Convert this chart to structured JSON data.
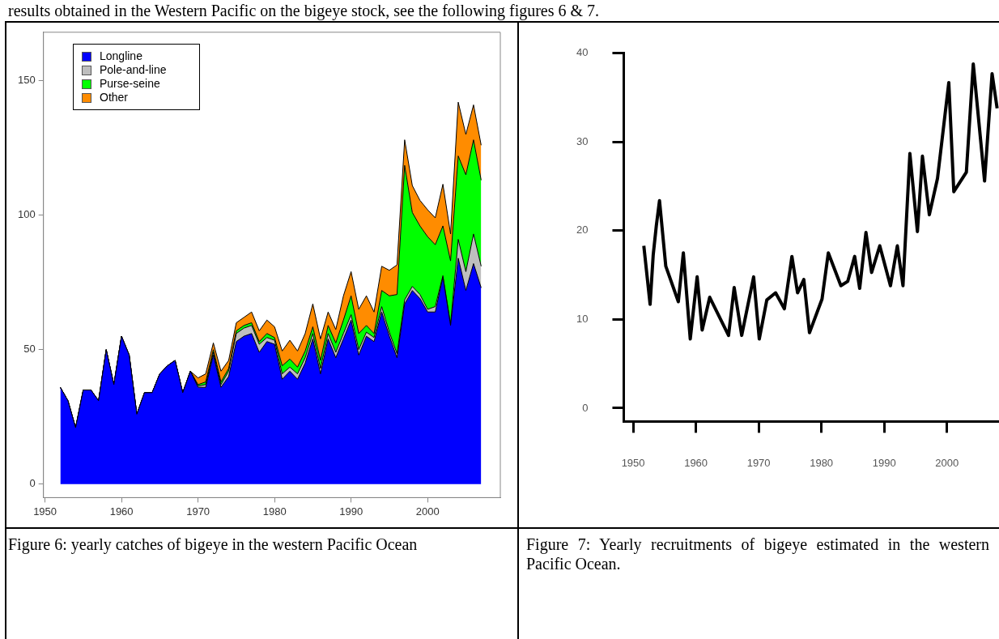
{
  "chart_data": [
    {
      "type": "area",
      "stacked": true,
      "marker": "none",
      "legend": "top left",
      "grid": false,
      "annotations": [
        "results obtained in the Western Pacific on the bigeye stock, see the following figures 6 & 7.",
        "Figure 6: yearly catches of bigeye in the western Pacific Ocean"
      ],
      "x": [
        1952,
        1953,
        1954,
        1955,
        1956,
        1957,
        1958,
        1959,
        1960,
        1961,
        1962,
        1963,
        1964,
        1965,
        1966,
        1967,
        1968,
        1969,
        1970,
        1971,
        1972,
        1973,
        1974,
        1975,
        1976,
        1977,
        1978,
        1979,
        1980,
        1981,
        1982,
        1983,
        1984,
        1985,
        1986,
        1987,
        1988,
        1989,
        1990,
        1991,
        1992,
        1993,
        1994,
        1995,
        1996,
        1997,
        1998,
        1999,
        2000,
        2001,
        2002,
        2003,
        2004,
        2005,
        2006,
        2007
      ],
      "xlim": [
        1949.8,
        2009.5
      ],
      "xticks": [
        1950,
        1960,
        1970,
        1980,
        1990,
        2000
      ],
      "ylim": [
        -5,
        168
      ],
      "yticks": [
        0,
        50,
        100,
        150
      ],
      "series": [
        {
          "name": "Longline",
          "color": "#0000ff",
          "values": [
            36,
            31,
            21,
            35,
            35,
            31,
            50,
            37,
            55,
            48,
            26,
            34,
            34,
            41,
            44,
            46,
            34,
            42,
            36,
            36,
            48,
            36,
            40,
            53,
            55,
            56,
            49,
            53,
            52,
            39,
            42,
            39,
            45,
            54,
            41,
            54,
            47,
            54,
            61,
            48,
            55,
            53,
            64,
            55,
            47,
            67,
            72,
            69,
            64,
            64,
            77,
            59,
            84,
            72,
            82,
            73
          ]
        },
        {
          "name": "Pole-and-line",
          "color": "#bebebe",
          "values": [
            0,
            0,
            0,
            0,
            0,
            0,
            0,
            0,
            0,
            0,
            0,
            0,
            0,
            0,
            0,
            0,
            0,
            0,
            0.5,
            1,
            1,
            1,
            2,
            3,
            3,
            3,
            3,
            1.5,
            1.5,
            2,
            1.5,
            2,
            2,
            2,
            2,
            2,
            2,
            2,
            2,
            2,
            1.5,
            1.5,
            2,
            1.5,
            1.5,
            1.5,
            1.5,
            1.5,
            1,
            2,
            0.5,
            0.5,
            7,
            7,
            11,
            8
          ]
        },
        {
          "name": "Purse-seine",
          "color": "#00ff00",
          "values": [
            0,
            0,
            0,
            0,
            0,
            0,
            0,
            0,
            0,
            0,
            0,
            0,
            0,
            0,
            0,
            0,
            0,
            0,
            0.5,
            1,
            1,
            1,
            1,
            1,
            1,
            1,
            1,
            1.5,
            1,
            3,
            3,
            2.5,
            2.5,
            2.5,
            3,
            3,
            3.5,
            5,
            7,
            6,
            2.5,
            1.5,
            6,
            13.5,
            22,
            50,
            27.5,
            25.5,
            27,
            23,
            18.5,
            23.5,
            31,
            36,
            35,
            32
          ]
        },
        {
          "name": "Other",
          "color": "#ff8c00",
          "values": [
            0,
            0,
            0,
            0,
            0,
            0,
            0,
            0,
            0,
            0,
            0,
            0,
            0,
            0,
            0,
            0,
            0,
            0,
            2.5,
            3,
            2.5,
            4,
            3,
            3,
            3,
            4,
            4,
            5,
            4,
            5.5,
            7,
            6,
            6.5,
            8.5,
            8,
            5,
            5,
            9,
            9,
            9,
            11,
            8,
            9,
            9.5,
            11,
            9.5,
            10,
            9.5,
            10,
            10,
            15.5,
            10,
            20,
            15,
            13,
            13
          ]
        }
      ]
    },
    {
      "type": "line",
      "marker": "none",
      "grid": false,
      "annotations": [
        "Figure 7: Yearly recruitments of bigeye estimated in the western Pacific Ocean."
      ],
      "x": [
        1951.7,
        1952.7,
        1953.2,
        1953.7,
        1954.2,
        1955.2,
        1957.2,
        1958,
        1959.1,
        1960.2,
        1961,
        1962.2,
        1965.2,
        1966.1,
        1967.3,
        1969.2,
        1970.1,
        1971.3,
        1972.7,
        1974.1,
        1975.3,
        1976.2,
        1977.2,
        1978.1,
        1980.1,
        1981.1,
        1983.1,
        1984.2,
        1985.3,
        1986.1,
        1987.1,
        1988,
        1989.3,
        1991,
        1992.1,
        1993,
        1994.1,
        1995.3,
        1996.1,
        1997.2,
        1998.5,
        2000.3,
        2001.1,
        2003.1,
        2004.2,
        2006,
        2007.2,
        2008
      ],
      "xlim": [
        1948.5,
        2008.3
      ],
      "xticks": [
        1950,
        1960,
        1970,
        1980,
        1990,
        2000
      ],
      "ylim": [
        -1.5,
        40
      ],
      "yticks": [
        0,
        10,
        20,
        30,
        40
      ],
      "series": [
        {
          "color": "#000000",
          "values": [
            18.3,
            11.7,
            17.3,
            20.6,
            23.4,
            16,
            12,
            17.5,
            7.8,
            14.8,
            8.8,
            12.5,
            8.2,
            13.6,
            8.2,
            14.8,
            7.8,
            12.2,
            13,
            11.2,
            17.1,
            13,
            14.5,
            8.5,
            12.3,
            17.5,
            13.8,
            14.3,
            17.1,
            13.5,
            19.8,
            15.3,
            18.3,
            13.8,
            18.3,
            13.8,
            28.7,
            19.9,
            28.4,
            21.8,
            25.9,
            36.7,
            24.4,
            26.6,
            38.8,
            25.6,
            37.7,
            33.8
          ]
        }
      ]
    }
  ]
}
